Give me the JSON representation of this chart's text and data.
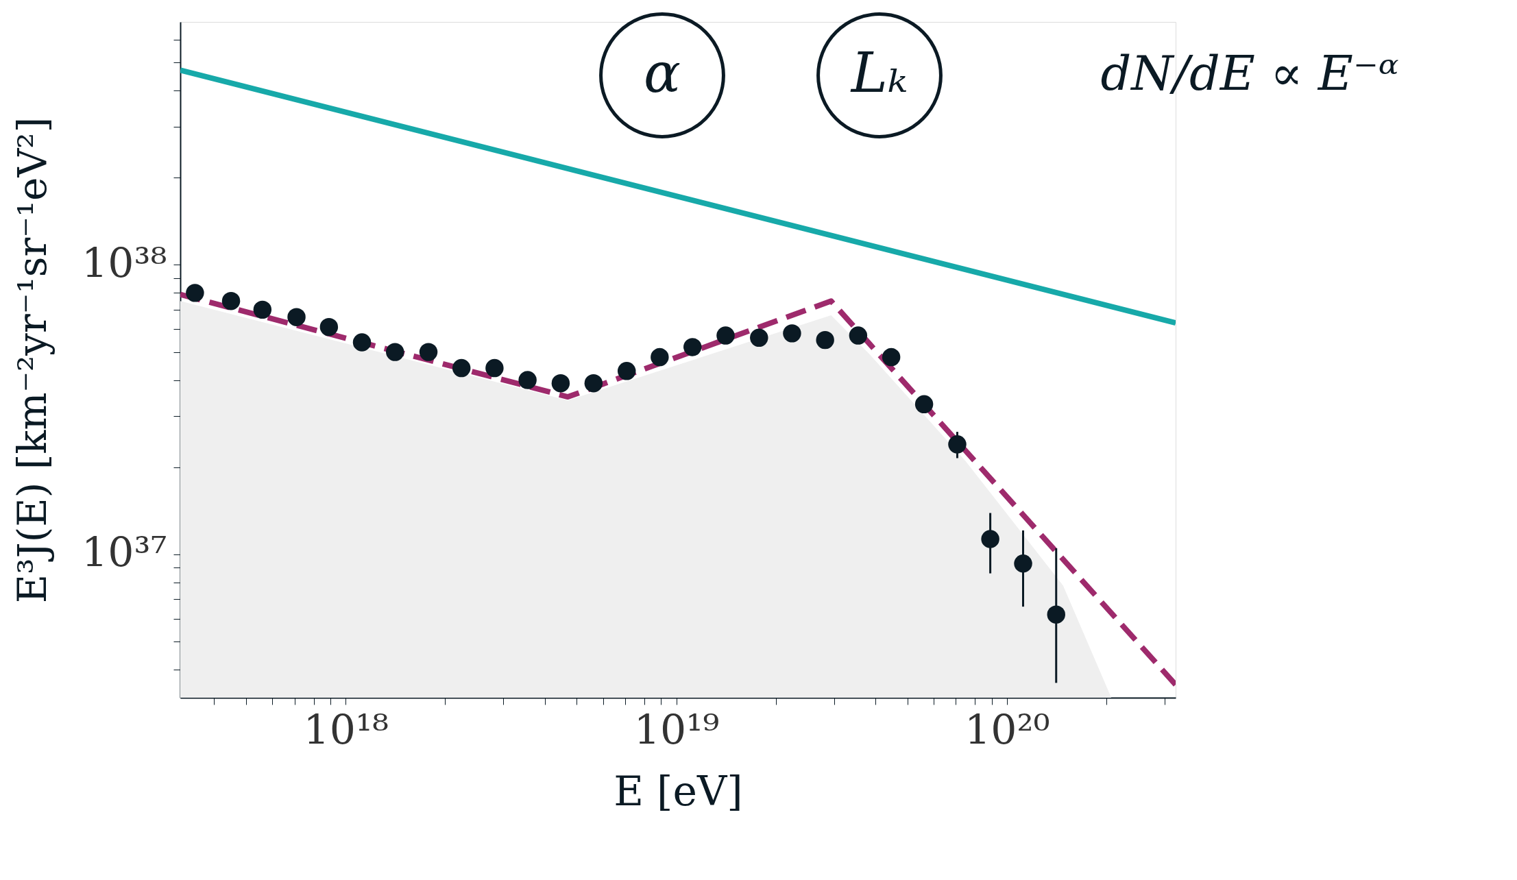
{
  "chart_data": {
    "type": "line",
    "xlabel": "E [eV]",
    "ylabel": "E³J(E) [km⁻²yr⁻¹sr⁻¹eV²]",
    "annotations": [
      "α",
      "Lₖ",
      "dN/dE ∝ E⁻ᵅ"
    ],
    "log": "xy",
    "grid": false,
    "xlim": [
      3.16e+17,
      3.24e+20
    ],
    "ylim": [
      3.2e+36,
      6.9e+38
    ],
    "xticks": [
      {
        "value": 4e+17,
        "label": null
      },
      {
        "value": 5e+17,
        "label": null
      },
      {
        "value": 6e+17,
        "label": null
      },
      {
        "value": 7e+17,
        "label": null
      },
      {
        "value": 8e+17,
        "label": null
      },
      {
        "value": 9e+17,
        "label": null
      },
      {
        "value": 1e+18,
        "label": "10¹⁸"
      },
      {
        "value": 2e+18,
        "label": null
      },
      {
        "value": 3e+18,
        "label": null
      },
      {
        "value": 4e+18,
        "label": null
      },
      {
        "value": 5e+18,
        "label": null
      },
      {
        "value": 6e+18,
        "label": null
      },
      {
        "value": 7e+18,
        "label": null
      },
      {
        "value": 8e+18,
        "label": null
      },
      {
        "value": 9e+18,
        "label": null
      },
      {
        "value": 1e+19,
        "label": "10¹⁹"
      },
      {
        "value": 2e+19,
        "label": null
      },
      {
        "value": 3e+19,
        "label": null
      },
      {
        "value": 4e+19,
        "label": null
      },
      {
        "value": 5e+19,
        "label": null
      },
      {
        "value": 6e+19,
        "label": null
      },
      {
        "value": 7e+19,
        "label": null
      },
      {
        "value": 8e+19,
        "label": null
      },
      {
        "value": 9e+19,
        "label": null
      },
      {
        "value": 1e+20,
        "label": "10²⁰"
      },
      {
        "value": 2e+20,
        "label": null
      },
      {
        "value": 3e+20,
        "label": null
      }
    ],
    "yticks": [
      {
        "value": 4e+36,
        "label": null
      },
      {
        "value": 5e+36,
        "label": null
      },
      {
        "value": 6e+36,
        "label": null
      },
      {
        "value": 7e+36,
        "label": null
      },
      {
        "value": 8e+36,
        "label": null
      },
      {
        "value": 9e+36,
        "label": null
      },
      {
        "value": 1e+37,
        "label": "10³⁷"
      },
      {
        "value": 2e+37,
        "label": null
      },
      {
        "value": 3e+37,
        "label": null
      },
      {
        "value": 4e+37,
        "label": null
      },
      {
        "value": 5e+37,
        "label": null
      },
      {
        "value": 6e+37,
        "label": null
      },
      {
        "value": 7e+37,
        "label": null
      },
      {
        "value": 8e+37,
        "label": null
      },
      {
        "value": 9e+37,
        "label": null
      },
      {
        "value": 1e+38,
        "label": "10³⁸"
      },
      {
        "value": 2e+38,
        "label": null
      },
      {
        "value": 3e+38,
        "label": null
      },
      {
        "value": 4e+38,
        "label": null
      },
      {
        "value": 5e+38,
        "label": null
      },
      {
        "value": 6e+38,
        "label": null
      }
    ],
    "series": [
      {
        "type": "area",
        "color": "#efefef",
        "x": [
          3.16e+17,
          4.7e+18,
          2.94e+19,
          3.85e+19,
          7.5e+19,
          1.48e+20,
          2.07e+20
        ],
        "values": [
          7.5e+37,
          3.4e+37,
          6.7e+37,
          4.9e+37,
          2.1e+37,
          7.8e+36,
          3.2e+36
        ]
      },
      {
        "color": "#17a9a9",
        "x": [
          3.16e+17,
          3.24e+20
        ],
        "values": [
          4.7e+38,
          6.3e+37
        ]
      },
      {
        "line_style": "dashed",
        "color": "#9e2a6c",
        "x": [
          3.16e+17,
          4.7e+18,
          2.94e+19,
          3.24e+20
        ],
        "values": [
          7.9e+37,
          3.5e+37,
          7.5e+37,
          3.55e+36
        ]
      },
      {
        "type": "scatter",
        "marker": "circle",
        "color": "#0b1a24",
        "x": [
          3.5e+17,
          4.5e+17,
          5.6e+17,
          7.1e+17,
          8.9e+17,
          1.12e+18,
          1.41e+18,
          1.78e+18,
          2.24e+18,
          2.82e+18,
          3.55e+18,
          4.47e+18,
          5.62e+18,
          7.08e+18,
          8.91e+18,
          1.12e+19,
          1.41e+19,
          1.78e+19,
          2.24e+19,
          2.82e+19,
          3.55e+19,
          4.47e+19,
          5.62e+19,
          7.08e+19,
          8.91e+19,
          1.12e+20,
          1.41e+20
        ],
        "values": [
          8e+37,
          7.5e+37,
          7e+37,
          6.6e+37,
          6.1e+37,
          5.4e+37,
          5e+37,
          5e+37,
          4.4e+37,
          4.4e+37,
          4e+37,
          3.9e+37,
          3.9e+37,
          4.3e+37,
          4.8e+37,
          5.2e+37,
          5.7e+37,
          5.6e+37,
          5.8e+37,
          5.5e+37,
          5.7e+37,
          4.8e+37,
          3.3e+37,
          2.4e+37,
          1.13e+37,
          9.3e+36,
          6.2e+36
        ],
        "errors": [
          null,
          null,
          null,
          null,
          null,
          null,
          null,
          null,
          null,
          null,
          null,
          null,
          null,
          null,
          null,
          null,
          null,
          null,
          null,
          null,
          null,
          null,
          null,
          [
            2.15e+37,
            2.65e+37
          ],
          [
            8.6e+36,
            1.39e+37
          ],
          [
            6.6e+36,
            1.21e+37
          ],
          [
            3.6e+36,
            1.05e+37
          ]
        ]
      }
    ]
  }
}
